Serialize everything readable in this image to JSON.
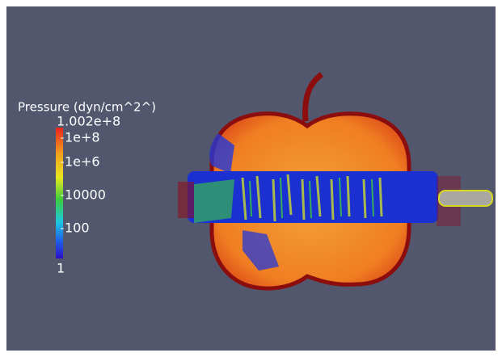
{
  "legend": {
    "title": "Pressure (dyn/cm^2^)",
    "max_label": "1.002e+8",
    "ticks": [
      "1e+8",
      "1e+6",
      "10000",
      "100",
      "1"
    ]
  }
}
